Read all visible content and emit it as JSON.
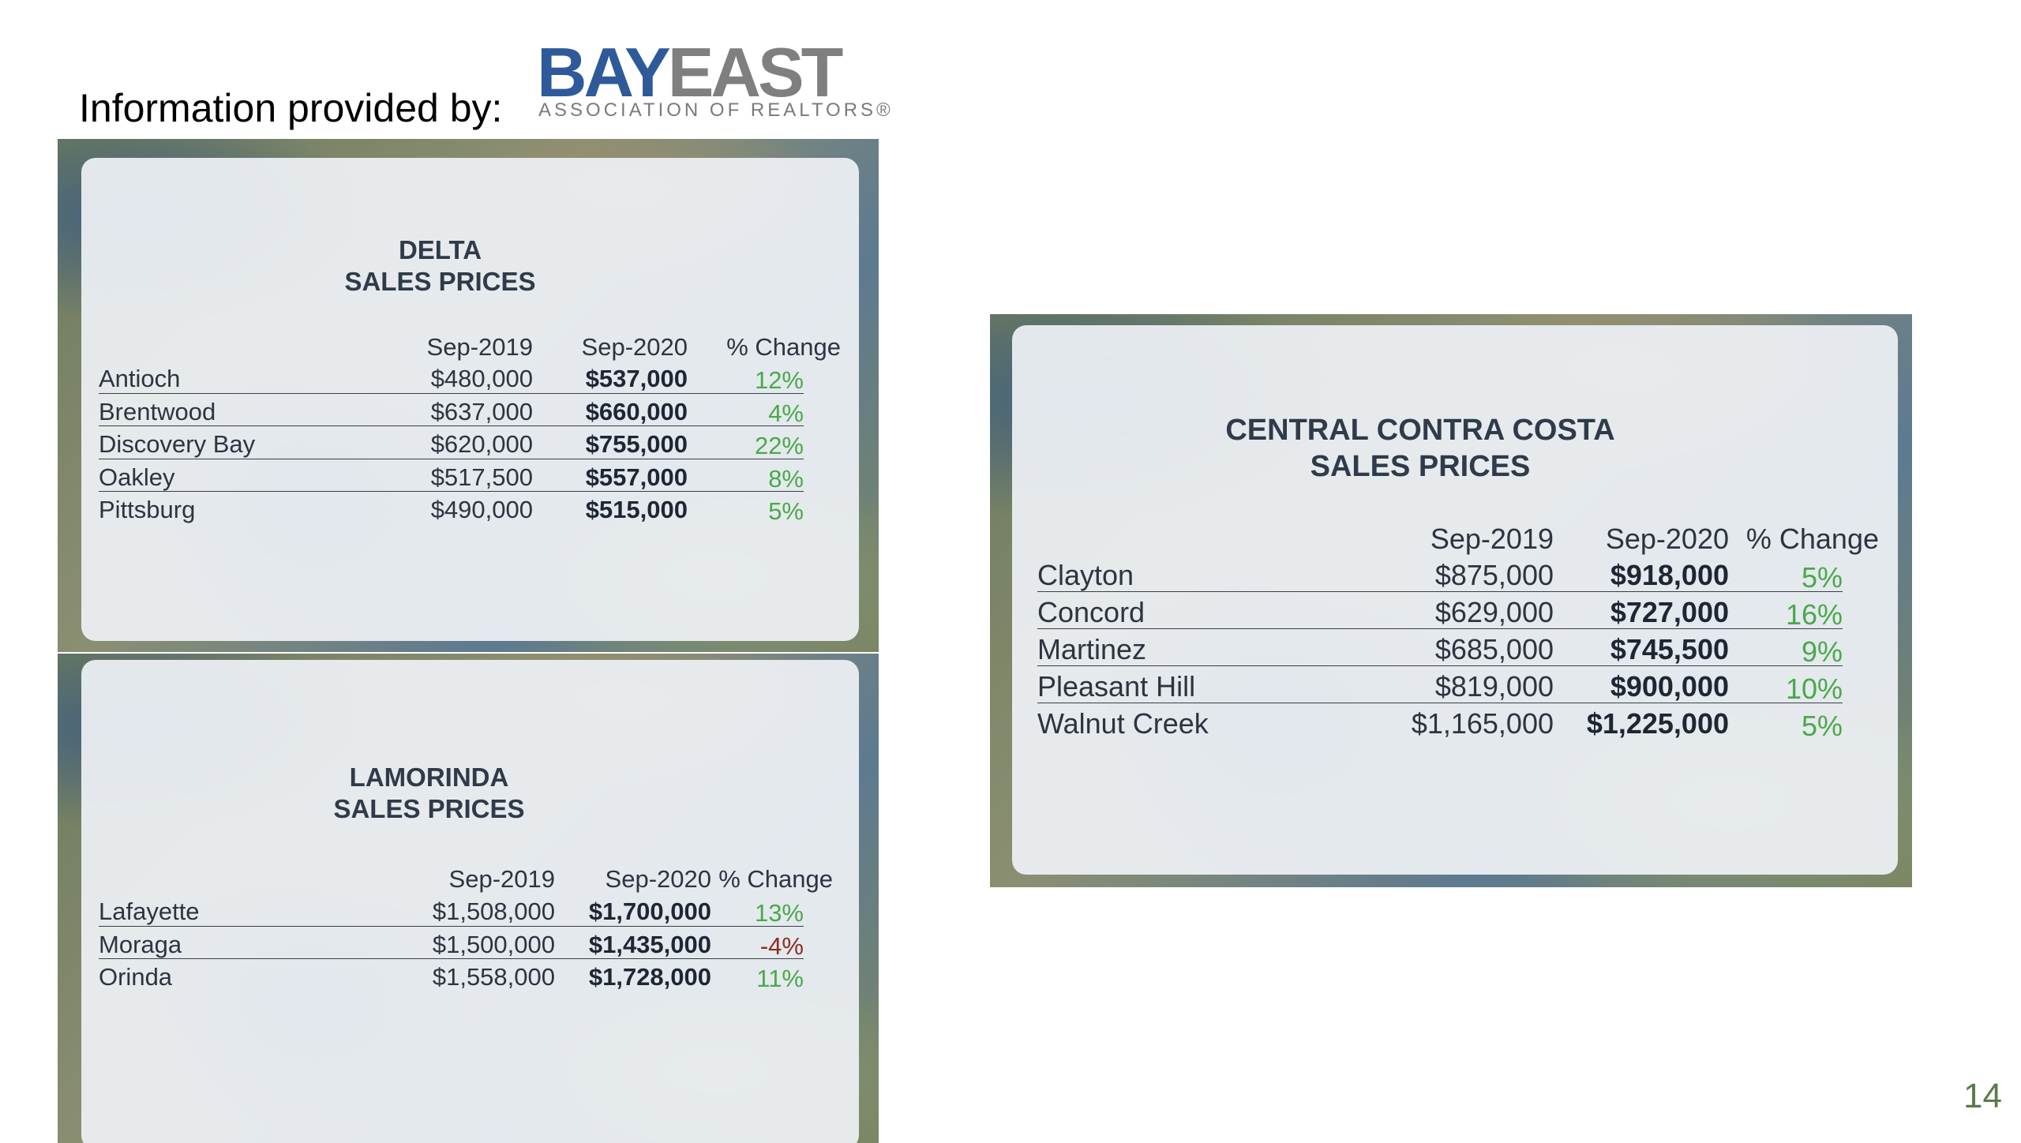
{
  "header": {
    "provided_by": "Information provided by:",
    "logo_bay": "BAY",
    "logo_east": "EAST",
    "logo_sub": "ASSOCIATION OF REALTORS®"
  },
  "column_headers": {
    "col1": "Sep-2019",
    "col2": "Sep-2020",
    "col3": "% Change"
  },
  "delta": {
    "title1": "DELTA",
    "title2": "SALES PRICES",
    "rows": [
      {
        "city": "Antioch",
        "y2019": "$480,000",
        "y2020": "$537,000",
        "change": "12%"
      },
      {
        "city": "Brentwood",
        "y2019": "$637,000",
        "y2020": "$660,000",
        "change": "4%"
      },
      {
        "city": "Discovery Bay",
        "y2019": "$620,000",
        "y2020": "$755,000",
        "change": "22%"
      },
      {
        "city": "Oakley",
        "y2019": "$517,500",
        "y2020": "$557,000",
        "change": "8%"
      },
      {
        "city": "Pittsburg",
        "y2019": "$490,000",
        "y2020": "$515,000",
        "change": "5%"
      }
    ]
  },
  "lamorinda": {
    "title1": "LAMORINDA",
    "title2": "SALES PRICES",
    "rows": [
      {
        "city": "Lafayette",
        "y2019": "$1,508,000",
        "y2020": "$1,700,000",
        "change": "13%"
      },
      {
        "city": "Moraga",
        "y2019": "$1,500,000",
        "y2020": "$1,435,000",
        "change": "-4%"
      },
      {
        "city": "Orinda",
        "y2019": "$1,558,000",
        "y2020": "$1,728,000",
        "change": "11%"
      }
    ]
  },
  "central": {
    "title1": "CENTRAL CONTRA COSTA",
    "title2": "SALES PRICES",
    "rows": [
      {
        "city": "Clayton",
        "y2019": "$875,000",
        "y2020": "$918,000",
        "change": "5%"
      },
      {
        "city": "Concord",
        "y2019": "$629,000",
        "y2020": "$727,000",
        "change": "16%"
      },
      {
        "city": "Martinez",
        "y2019": "$685,000",
        "y2020": "$745,500",
        "change": "9%"
      },
      {
        "city": "Pleasant Hill",
        "y2019": "$819,000",
        "y2020": "$900,000",
        "change": "10%"
      },
      {
        "city": "Walnut Creek",
        "y2019": "$1,165,000",
        "y2020": "$1,225,000",
        "change": "5%"
      }
    ]
  },
  "colors": {
    "positive": "#4aa84a",
    "negative": "#8b2e1e",
    "brand_blue": "#2e5a9a"
  },
  "page_number": "14"
}
